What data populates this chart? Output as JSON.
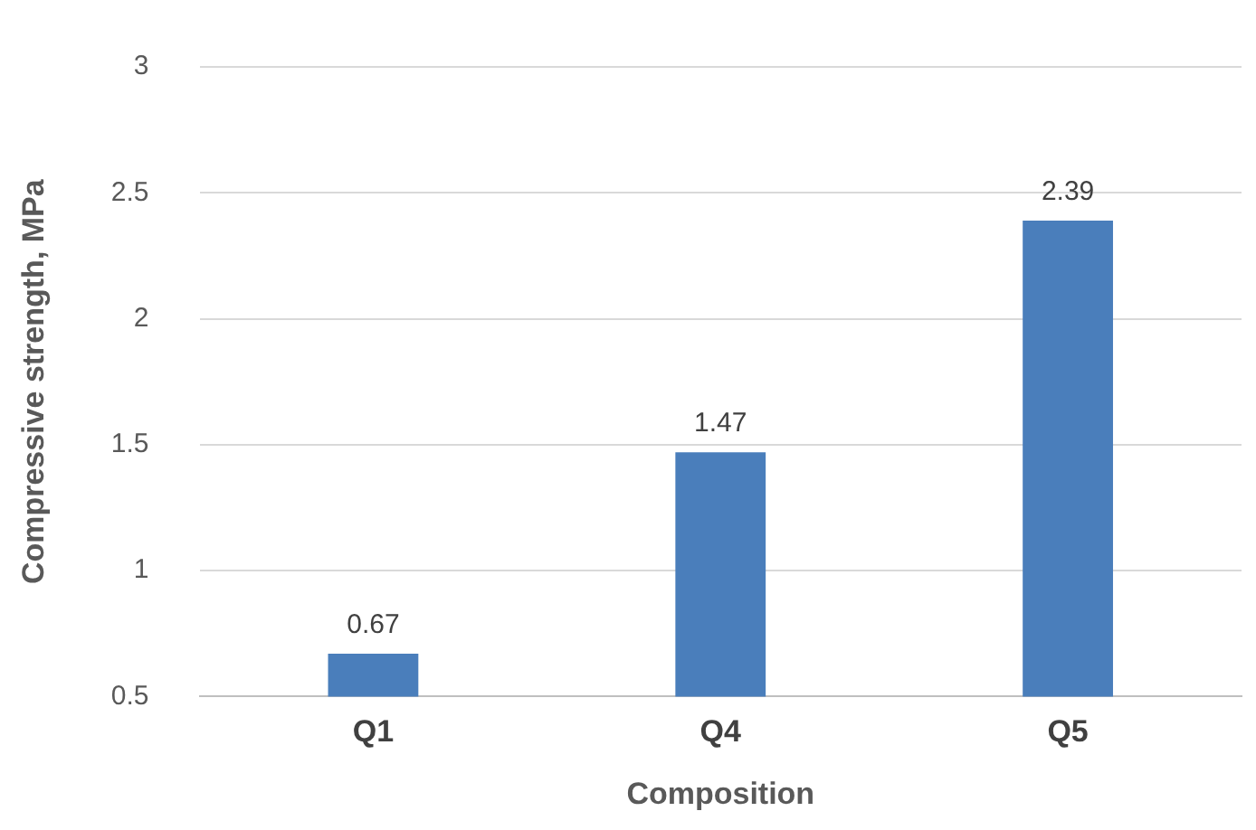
{
  "chart_data": {
    "type": "bar",
    "xlabel": "Composition",
    "ylabel": "Compressive strength, MPa",
    "categories": [
      "Q1",
      "Q4",
      "Q5"
    ],
    "values": [
      0.67,
      1.47,
      2.39
    ],
    "color": "#4a7ebb",
    "ylim": [
      0.5,
      3
    ],
    "yticks": [
      0.5,
      1,
      1.5,
      2,
      2.5,
      3
    ],
    "grid": "y",
    "data_labels": true,
    "legend": false
  }
}
